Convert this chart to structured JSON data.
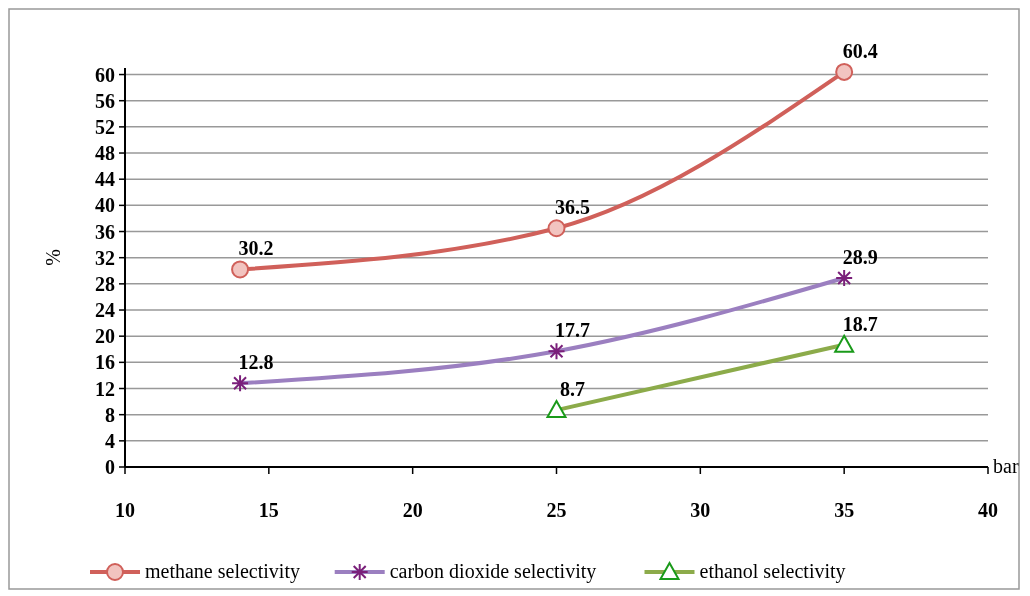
{
  "chart_data": {
    "type": "line",
    "xlabel": "bar",
    "ylabel": "%",
    "xlim": [
      10,
      40
    ],
    "xticks": [
      10,
      15,
      20,
      25,
      30,
      35,
      40
    ],
    "ylim": [
      0,
      61
    ],
    "yticks": [
      0,
      4,
      8,
      12,
      16,
      20,
      24,
      28,
      32,
      36,
      40,
      44,
      48,
      52,
      56,
      60
    ],
    "grid": "y",
    "legend": "bottom",
    "data_labels": true,
    "series": [
      {
        "name": "methane selectivity",
        "color": "#d0605a",
        "marker": "circle",
        "x": [
          14,
          25,
          35
        ],
        "values": [
          30.2,
          36.5,
          60.4
        ]
      },
      {
        "name": "carbon dioxide selectivity",
        "color": "#9b7fc0",
        "marker": "cross",
        "x": [
          14,
          25,
          35
        ],
        "values": [
          12.8,
          17.7,
          28.9
        ]
      },
      {
        "name": "ethanol selectivity",
        "color": "#8cab4a",
        "marker": "triangle",
        "x": [
          25,
          35
        ],
        "values": [
          8.7,
          18.7
        ]
      }
    ]
  }
}
